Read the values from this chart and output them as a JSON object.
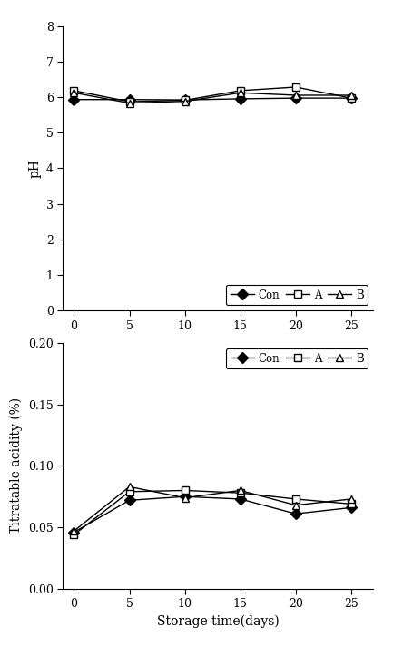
{
  "x": [
    0,
    5,
    10,
    15,
    20,
    25
  ],
  "ph_con": [
    5.93,
    5.93,
    5.92,
    5.95,
    5.97,
    5.97
  ],
  "ph_A": [
    6.18,
    5.87,
    5.91,
    6.18,
    6.28,
    5.97
  ],
  "ph_B": [
    6.12,
    5.83,
    5.88,
    6.12,
    6.05,
    6.05
  ],
  "ta_con": [
    0.046,
    0.072,
    0.075,
    0.073,
    0.061,
    0.066
  ],
  "ta_A": [
    0.044,
    0.079,
    0.08,
    0.078,
    0.073,
    0.069
  ],
  "ta_B": [
    0.047,
    0.083,
    0.074,
    0.08,
    0.068,
    0.073
  ],
  "ph_ylim": [
    0,
    8
  ],
  "ph_yticks": [
    0,
    1,
    2,
    3,
    4,
    5,
    6,
    7,
    8
  ],
  "ta_ylim": [
    0.0,
    0.2
  ],
  "ta_yticks": [
    0.0,
    0.05,
    0.1,
    0.15,
    0.2
  ],
  "xlabel": "Storage time(days)",
  "ph_ylabel": "pH",
  "ta_ylabel": "Titratable acidity (%)",
  "xticks": [
    0,
    5,
    10,
    15,
    20,
    25
  ],
  "legend_labels": [
    "Con",
    "A",
    "B"
  ],
  "line_color": "#000000",
  "marker_con": "D",
  "marker_A": "s",
  "marker_B": "^",
  "markersize": 6,
  "linewidth": 1.0,
  "fontsize_tick": 9,
  "fontsize_label": 10,
  "fontsize_legend": 8.5
}
